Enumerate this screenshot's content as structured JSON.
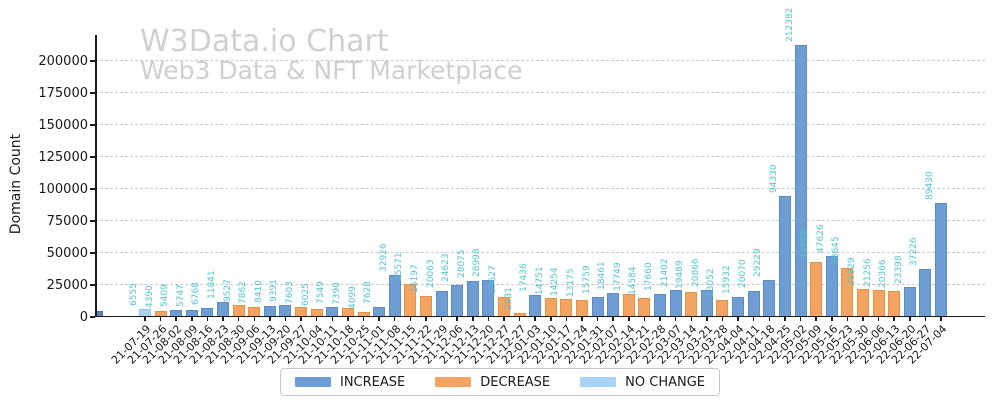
{
  "chart_data": {
    "type": "bar",
    "title": "W3Data.io Chart",
    "subtitle": "Web3 Data & NFT Marketplace",
    "ylabel": "Domain Count",
    "xlabel": "",
    "categories": [
      "21-07-19",
      "21-07-26",
      "21-08-02",
      "21-08-09",
      "21-08-16",
      "21-08-23",
      "21-08-30",
      "21-09-06",
      "21-09-13",
      "21-09-20",
      "21-09-27",
      "21-10-04",
      "21-10-11",
      "21-10-18",
      "21-10-25",
      "21-11-01",
      "21-11-08",
      "21-11-15",
      "21-11-22",
      "21-11-29",
      "21-12-06",
      "21-12-13",
      "21-12-20",
      "21-12-27",
      "21-12-27",
      "22-01-03",
      "22-01-10",
      "22-01-17",
      "22-01-24",
      "22-01-31",
      "22-02-07",
      "22-02-14",
      "22-02-21",
      "22-02-28",
      "22-03-07",
      "22-03-14",
      "22-03-21",
      "22-03-28",
      "22-04-04",
      "22-04-11",
      "22-04-18",
      "22-04-25",
      "22-05-02",
      "22-05-09",
      "22-05-16",
      "22-05-23",
      "22-05-30",
      "22-06-06",
      "22-06-13",
      "22-06-20",
      "22-06-27",
      "22-07-04"
    ],
    "values": [
      6555,
      4390,
      5409,
      5747,
      6768,
      11841,
      9527,
      7862,
      8410,
      9391,
      7603,
      6025,
      7549,
      7390,
      4099,
      7628,
      32926,
      25571,
      16197,
      20063,
      24623,
      28075,
      28998,
      15627,
      2931,
      17436,
      14751,
      14254,
      13175,
      15759,
      18461,
      17749,
      14584,
      17660,
      21402,
      19489,
      20866,
      13052,
      15932,
      20070,
      29229,
      94330,
      212382,
      42953,
      47626,
      38645,
      21929,
      21256,
      20366,
      23398,
      37226,
      89430
    ],
    "changes": [
      "no_change",
      "decrease",
      "increase",
      "increase",
      "increase",
      "increase",
      "decrease",
      "decrease",
      "increase",
      "increase",
      "decrease",
      "decrease",
      "increase",
      "decrease",
      "decrease",
      "increase",
      "increase",
      "decrease",
      "decrease",
      "increase",
      "increase",
      "increase",
      "increase",
      "decrease",
      "decrease",
      "increase",
      "decrease",
      "decrease",
      "decrease",
      "increase",
      "increase",
      "decrease",
      "decrease",
      "increase",
      "increase",
      "decrease",
      "increase",
      "decrease",
      "increase",
      "increase",
      "increase",
      "increase",
      "increase",
      "decrease",
      "increase",
      "decrease",
      "decrease",
      "decrease",
      "decrease",
      "increase",
      "increase",
      "increase"
    ],
    "yticks": [
      0,
      25000,
      50000,
      75000,
      100000,
      125000,
      150000,
      175000,
      200000
    ],
    "ylim": [
      0,
      220000
    ],
    "grid": {
      "axis": "y",
      "style": "dashed",
      "color": "#c9c9c9"
    },
    "colors": {
      "increase": "#6d9dd3",
      "decrease": "#f4a460",
      "no_change": "#a9d3f5",
      "edge_bar": "#5e86ad",
      "value_label": "#54c4cf",
      "title": "#d0d0d0"
    },
    "legend": {
      "position": "bottom-center",
      "items": [
        {
          "label": "INCREASE",
          "key": "increase"
        },
        {
          "label": "DECREASE",
          "key": "decrease"
        },
        {
          "label": "NO CHANGE",
          "key": "no_change"
        }
      ]
    },
    "value_labels": {
      "rotation": 90,
      "color": "#54c4cf"
    },
    "edge_bar": {
      "approx_value": 4700,
      "labeled": false,
      "note": "small unlabeled bar at left axis"
    }
  }
}
